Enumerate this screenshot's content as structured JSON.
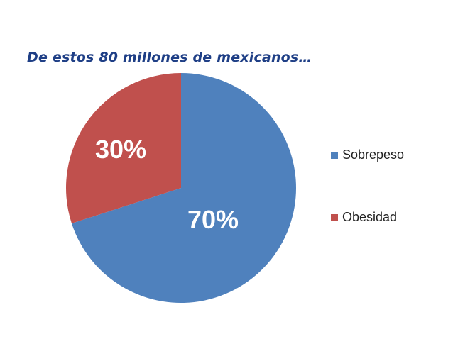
{
  "colors": {
    "title": "#1f3f86",
    "sobrepeso": "#4f81bd",
    "obesidad": "#c0504d"
  },
  "chart_data": {
    "type": "pie",
    "title": "De estos 80 millones de mexicanos…",
    "legend_position": "right",
    "slices": [
      {
        "name": "Sobrepeso",
        "value": 70,
        "label": "70%",
        "color": "#4f81bd"
      },
      {
        "name": "Obesidad",
        "value": 30,
        "label": "30%",
        "color": "#c0504d"
      }
    ]
  }
}
